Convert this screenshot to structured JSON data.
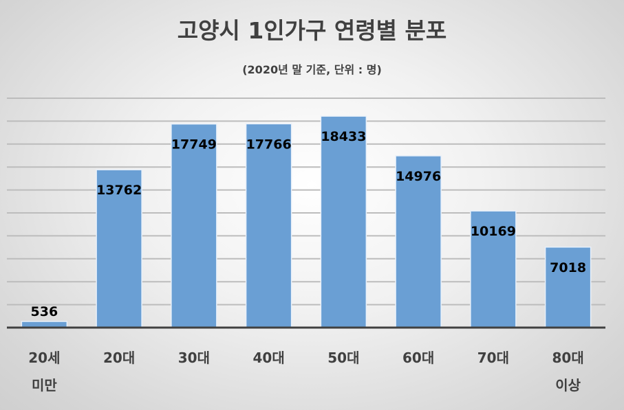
{
  "chart_data": {
    "type": "bar",
    "title": "고양시 1인가구 연령별 분포",
    "subtitle": "(2020년 말 기준, 단위 : 명)",
    "categories": [
      [
        "20세",
        "미만"
      ],
      [
        "20대"
      ],
      [
        "30대"
      ],
      [
        "40대"
      ],
      [
        "50대"
      ],
      [
        "60대"
      ],
      [
        "70대"
      ],
      [
        "80대",
        "이상"
      ]
    ],
    "values": [
      536,
      13762,
      17749,
      17766,
      18433,
      14976,
      10169,
      7018
    ],
    "ylim": [
      0,
      20000
    ],
    "grid_step": 2000,
    "grid": true,
    "y_tick_labels_shown": false,
    "bar_color": "#6a9fd4",
    "legend": "none"
  }
}
